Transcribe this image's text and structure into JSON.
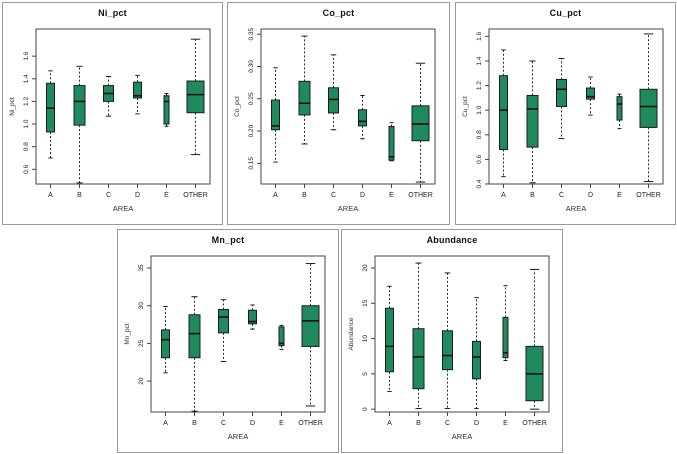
{
  "figure": {
    "background": "#ffffff",
    "panel_border": "#9a9a9a",
    "box_fill": "#1f8a5e",
    "box_stroke": "#1c1c1c",
    "median_color": "#111111",
    "whisker_color": "#2a2a2a",
    "axis_color": "#444444",
    "tick_text_color": "#222222"
  },
  "chart_data": [
    {
      "type": "boxplot",
      "title": "Ni_pct",
      "xlabel": "AREA",
      "ylabel": "Ni_pct",
      "categories": [
        "A",
        "B",
        "C",
        "D",
        "E",
        "OTHER"
      ],
      "ylim": [
        0.47,
        1.84
      ],
      "yticks": [
        0.6,
        0.8,
        1.0,
        1.2,
        1.4,
        1.6
      ],
      "ytick_labels": [
        "0.6",
        "0.8",
        "1.0",
        "1.2",
        "1.4",
        "1.6"
      ],
      "groups": [
        {
          "label": "A",
          "whislo": 0.7,
          "q1": 0.93,
          "med": 1.14,
          "q3": 1.36,
          "whishi": 1.47,
          "width": 8
        },
        {
          "label": "B",
          "whislo": 0.48,
          "q1": 0.99,
          "med": 1.2,
          "q3": 1.34,
          "whishi": 1.51,
          "width": 11
        },
        {
          "label": "C",
          "whislo": 1.07,
          "q1": 1.2,
          "med": 1.27,
          "q3": 1.34,
          "whishi": 1.42,
          "width": 10
        },
        {
          "label": "D",
          "whislo": 1.09,
          "q1": 1.23,
          "med": 1.25,
          "q3": 1.37,
          "whishi": 1.43,
          "width": 8
        },
        {
          "label": "E",
          "whislo": 0.98,
          "q1": 1.0,
          "med": 1.2,
          "q3": 1.25,
          "whishi": 1.27,
          "width": 5
        },
        {
          "label": "OTHER",
          "whislo": 0.73,
          "q1": 1.1,
          "med": 1.26,
          "q3": 1.38,
          "whishi": 1.75,
          "width": 17
        }
      ]
    },
    {
      "type": "boxplot",
      "title": "Co_pct",
      "xlabel": "AREA",
      "ylabel": "Co_pct",
      "categories": [
        "A",
        "B",
        "C",
        "D",
        "E",
        "OTHER"
      ],
      "ylim": [
        0.118,
        0.358
      ],
      "yticks": [
        0.15,
        0.2,
        0.25,
        0.3,
        0.35
      ],
      "ytick_labels": [
        "0.15",
        "0.20",
        "0.25",
        "0.30",
        "0.35"
      ],
      "groups": [
        {
          "label": "A",
          "whislo": 0.152,
          "q1": 0.202,
          "med": 0.208,
          "q3": 0.248,
          "whishi": 0.298,
          "width": 8
        },
        {
          "label": "B",
          "whislo": 0.18,
          "q1": 0.225,
          "med": 0.243,
          "q3": 0.277,
          "whishi": 0.347,
          "width": 11
        },
        {
          "label": "C",
          "whislo": 0.202,
          "q1": 0.228,
          "med": 0.249,
          "q3": 0.267,
          "whishi": 0.318,
          "width": 10
        },
        {
          "label": "D",
          "whislo": 0.188,
          "q1": 0.208,
          "med": 0.215,
          "q3": 0.233,
          "whishi": 0.255,
          "width": 8
        },
        {
          "label": "E",
          "whislo": 0.154,
          "q1": 0.155,
          "med": 0.16,
          "q3": 0.207,
          "whishi": 0.213,
          "width": 5
        },
        {
          "label": "OTHER",
          "whislo": 0.121,
          "q1": 0.185,
          "med": 0.211,
          "q3": 0.239,
          "whishi": 0.305,
          "width": 17
        }
      ]
    },
    {
      "type": "boxplot",
      "title": "Cu_pct",
      "xlabel": "AREA",
      "ylabel": "Cu_pct",
      "categories": [
        "A",
        "B",
        "C",
        "D",
        "E",
        "OTHER"
      ],
      "ylim": [
        0.4,
        1.66
      ],
      "yticks": [
        0.4,
        0.6,
        0.8,
        1.0,
        1.2,
        1.4,
        1.6
      ],
      "ytick_labels": [
        "0.4",
        "0.6",
        "0.8",
        "1.0",
        "1.2",
        "1.4",
        "1.6"
      ],
      "groups": [
        {
          "label": "A",
          "whislo": 0.46,
          "q1": 0.68,
          "med": 1.0,
          "q3": 1.28,
          "whishi": 1.49,
          "width": 8
        },
        {
          "label": "B",
          "whislo": 0.41,
          "q1": 0.7,
          "med": 1.01,
          "q3": 1.12,
          "whishi": 1.4,
          "width": 11
        },
        {
          "label": "C",
          "whislo": 0.77,
          "q1": 1.03,
          "med": 1.17,
          "q3": 1.25,
          "whishi": 1.42,
          "width": 10
        },
        {
          "label": "D",
          "whislo": 0.96,
          "q1": 1.09,
          "med": 1.11,
          "q3": 1.18,
          "whishi": 1.27,
          "width": 8
        },
        {
          "label": "E",
          "whislo": 0.85,
          "q1": 0.92,
          "med": 1.05,
          "q3": 1.11,
          "whishi": 1.13,
          "width": 5
        },
        {
          "label": "OTHER",
          "whislo": 0.42,
          "q1": 0.86,
          "med": 1.03,
          "q3": 1.17,
          "whishi": 1.62,
          "width": 17
        }
      ]
    },
    {
      "type": "boxplot",
      "title": "Mn_pct",
      "xlabel": "AREA",
      "ylabel": "Mn_pct",
      "categories": [
        "A",
        "B",
        "C",
        "D",
        "E",
        "OTHER"
      ],
      "ylim": [
        15.9,
        36.6
      ],
      "yticks": [
        20,
        25,
        30,
        35
      ],
      "ytick_labels": [
        "20",
        "25",
        "30",
        "35"
      ],
      "groups": [
        {
          "label": "A",
          "whislo": 21.1,
          "q1": 23.1,
          "med": 25.5,
          "q3": 26.8,
          "whishi": 29.9,
          "width": 8
        },
        {
          "label": "B",
          "whislo": 16.0,
          "q1": 23.1,
          "med": 26.3,
          "q3": 28.8,
          "whishi": 31.2,
          "width": 11
        },
        {
          "label": "C",
          "whislo": 22.6,
          "q1": 26.4,
          "med": 28.5,
          "q3": 29.5,
          "whishi": 30.8,
          "width": 10
        },
        {
          "label": "D",
          "whislo": 26.9,
          "q1": 27.6,
          "med": 27.9,
          "q3": 29.4,
          "whishi": 30.1,
          "width": 8
        },
        {
          "label": "E",
          "whislo": 24.2,
          "q1": 24.7,
          "med": 25.0,
          "q3": 27.2,
          "whishi": 27.4,
          "width": 5
        },
        {
          "label": "OTHER",
          "whislo": 16.7,
          "q1": 24.6,
          "med": 28.0,
          "q3": 30.0,
          "whishi": 35.6,
          "width": 17
        }
      ]
    },
    {
      "type": "boxplot",
      "title": "Abundance",
      "xlabel": "AREA",
      "ylabel": "Abundance",
      "categories": [
        "A",
        "B",
        "C",
        "D",
        "E",
        "OTHER"
      ],
      "ylim": [
        -0.4,
        21.7
      ],
      "yticks": [
        0,
        5,
        10,
        15,
        20
      ],
      "ytick_labels": [
        "0",
        "5",
        "10",
        "15",
        "20"
      ],
      "groups": [
        {
          "label": "A",
          "whislo": 2.5,
          "q1": 5.3,
          "med": 8.9,
          "q3": 14.3,
          "whishi": 17.4,
          "width": 8
        },
        {
          "label": "B",
          "whislo": 0.1,
          "q1": 2.9,
          "med": 7.4,
          "q3": 11.4,
          "whishi": 20.7,
          "width": 11
        },
        {
          "label": "C",
          "whislo": 0.1,
          "q1": 5.6,
          "med": 7.6,
          "q3": 11.1,
          "whishi": 19.3,
          "width": 10
        },
        {
          "label": "D",
          "whislo": 0.1,
          "q1": 4.3,
          "med": 7.4,
          "q3": 9.6,
          "whishi": 15.8,
          "width": 8
        },
        {
          "label": "E",
          "whislo": 6.9,
          "q1": 7.3,
          "med": 8.0,
          "q3": 13.0,
          "whishi": 17.5,
          "width": 5
        },
        {
          "label": "OTHER",
          "whislo": 0.0,
          "q1": 1.2,
          "med": 5.0,
          "q3": 8.9,
          "whishi": 19.8,
          "width": 17
        }
      ]
    }
  ]
}
